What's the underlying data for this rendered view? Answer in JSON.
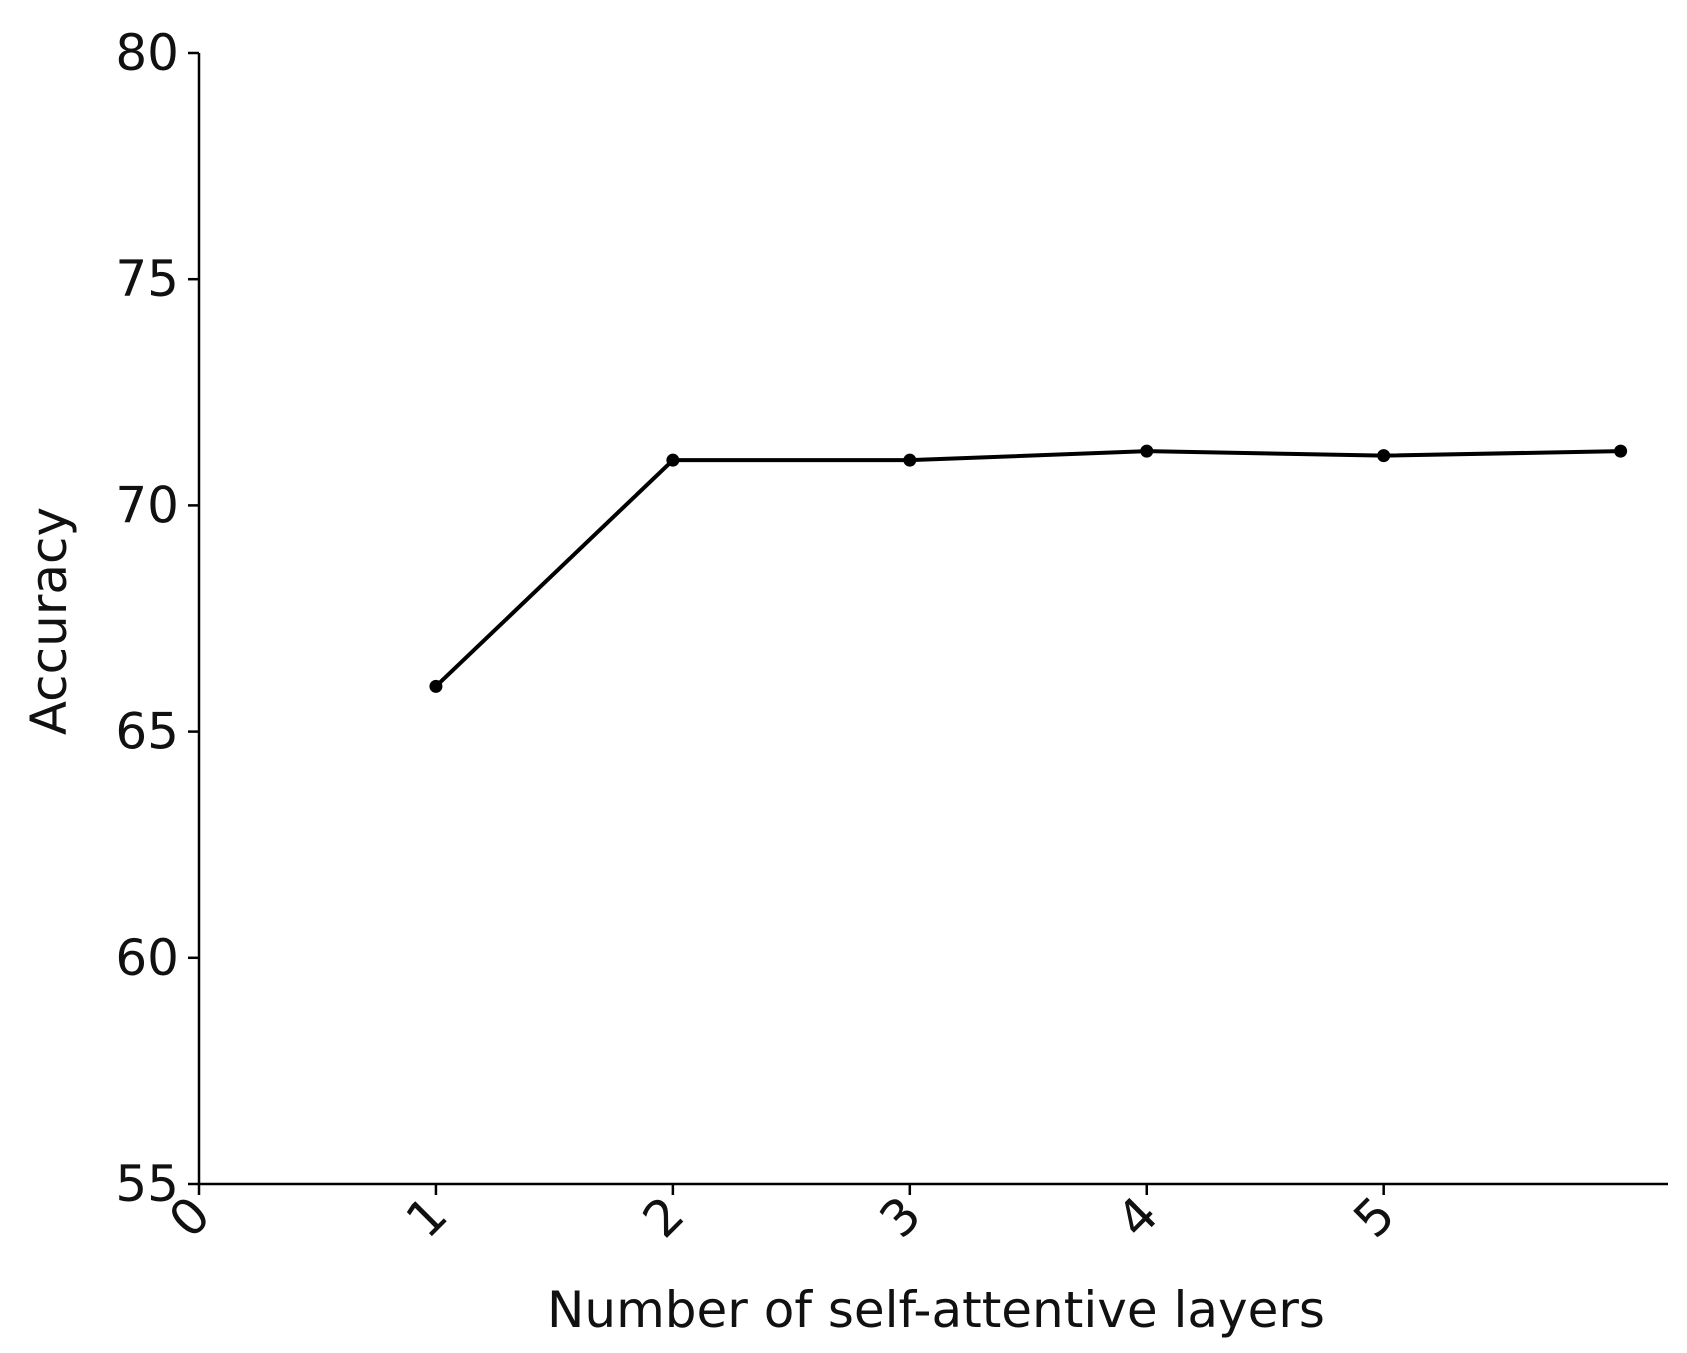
{
  "chart_data": {
    "type": "line",
    "title": "",
    "xlabel": "Number of self-attentive layers",
    "ylabel": "Accuracy",
    "xlim": [
      0,
      6.2
    ],
    "ylim": [
      55,
      80
    ],
    "x_ticks": [
      0,
      1,
      2,
      3,
      4,
      5
    ],
    "y_ticks": [
      55,
      60,
      65,
      70,
      75,
      80
    ],
    "grid": false,
    "legend": "none",
    "line_color": "#000000",
    "series": [
      {
        "x": [
          1,
          2,
          3,
          4,
          5,
          6
        ],
        "values": [
          66.0,
          71.0,
          71.0,
          71.2,
          71.1,
          71.2
        ]
      }
    ]
  }
}
